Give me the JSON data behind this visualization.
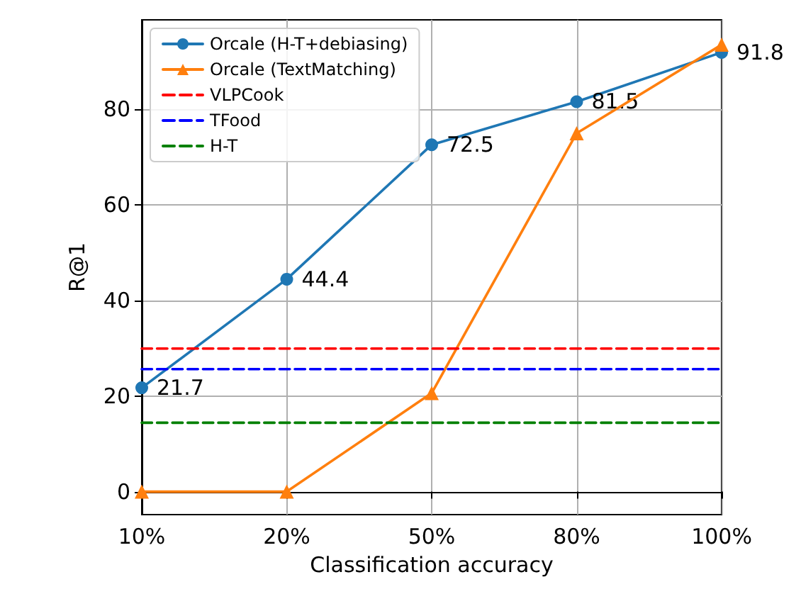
{
  "chart_data": {
    "type": "line",
    "xlabel": "Classification accuracy",
    "ylabel": "R@1",
    "categories": [
      "10%",
      "20%",
      "50%",
      "80%",
      "100%"
    ],
    "series": [
      {
        "name": "Orcale (H-T+debiasing)",
        "color": "#1f77b4",
        "marker": "circle",
        "values": [
          21.7,
          44.4,
          72.5,
          81.5,
          91.8
        ],
        "value_labels": [
          "21.7",
          "44.4",
          "72.5",
          "81.5",
          "91.8"
        ]
      },
      {
        "name": "Orcale (TextMatching)",
        "color": "#ff7f0e",
        "marker": "triangle",
        "values": [
          0,
          0,
          20.6,
          74.9,
          93.4
        ]
      },
      {
        "name": "VLPCook",
        "color": "#ff0000",
        "marker": "none",
        "line_style": "dashed",
        "values": [
          29.9,
          29.9,
          29.9,
          29.9,
          29.9
        ]
      },
      {
        "name": "TFood",
        "color": "#0000ff",
        "marker": "none",
        "line_style": "dashed",
        "values": [
          25.6,
          25.6,
          25.6,
          25.6,
          25.6
        ]
      },
      {
        "name": "H-T",
        "color": "#008000",
        "marker": "none",
        "line_style": "dashed",
        "values": [
          14.4,
          14.4,
          14.4,
          14.4,
          14.4
        ]
      }
    ],
    "ylim": [
      -4.8,
      98.6
    ],
    "yticks": [
      0,
      20,
      40,
      60,
      80
    ],
    "grid": true,
    "legend": "top left"
  }
}
